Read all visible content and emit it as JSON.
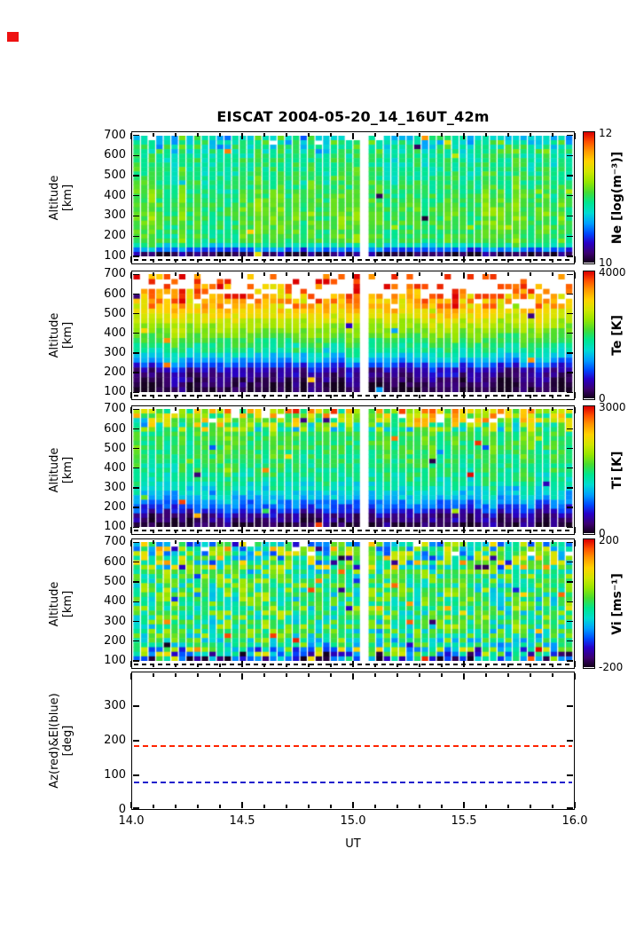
{
  "title": "EISCAT 2004-05-20_14_16UT_42m",
  "marker_color": "#ee1111",
  "x_axis": {
    "label": "UT",
    "ticks": [
      "14.0",
      "14.5",
      "15.0",
      "15.5",
      "16.0"
    ],
    "tick_values": [
      14.0,
      14.5,
      15.0,
      15.5,
      16.0
    ],
    "range": [
      14.0,
      16.0
    ]
  },
  "altitude_axis": {
    "label_line1": "Altitude",
    "label_line2": "[km]",
    "ticks": [
      "700",
      "600",
      "500",
      "400",
      "300",
      "200",
      "100"
    ],
    "tick_values": [
      700,
      600,
      500,
      400,
      300,
      200,
      100
    ],
    "range_km": [
      60,
      720
    ],
    "dashed_line_km": 85
  },
  "panels": [
    {
      "id": "ne",
      "colorbar_label": "Ne [log(m⁻³)]",
      "cbar_top_tick": "12",
      "cbar_bottom_tick": "10"
    },
    {
      "id": "te",
      "colorbar_label": "Te [K]",
      "cbar_top_tick": "4000",
      "cbar_bottom_tick": "0"
    },
    {
      "id": "ti",
      "colorbar_label": "Ti [K]",
      "cbar_top_tick": "3000",
      "cbar_bottom_tick": "0"
    },
    {
      "id": "vi",
      "colorbar_label": "Vi [ms⁻¹]",
      "cbar_top_tick": "200",
      "cbar_bottom_tick": "-200"
    }
  ],
  "azel_panel": {
    "label_line1": "Az(red)&El(blue)",
    "label_line2": "[deg]",
    "ticks": [
      "300",
      "200",
      "100",
      "0"
    ],
    "tick_values": [
      300,
      200,
      100,
      0
    ],
    "range_deg": [
      0,
      400
    ],
    "az_value_deg": 187,
    "el_value_deg": 82,
    "az_color": "#ff2400",
    "el_color": "#2020cc"
  },
  "colormap": [
    [
      0.0,
      "#14001e"
    ],
    [
      0.07,
      "#3c0070"
    ],
    [
      0.15,
      "#2800c8"
    ],
    [
      0.22,
      "#0048ff"
    ],
    [
      0.3,
      "#00a0ff"
    ],
    [
      0.38,
      "#00dcd2"
    ],
    [
      0.46,
      "#00e690"
    ],
    [
      0.54,
      "#46dc32"
    ],
    [
      0.62,
      "#96e600"
    ],
    [
      0.7,
      "#d2e600"
    ],
    [
      0.78,
      "#ffd200"
    ],
    [
      0.86,
      "#ff9600"
    ],
    [
      0.93,
      "#ff5000"
    ],
    [
      1.0,
      "#dc0000"
    ]
  ],
  "chart_data": [
    {
      "type": "heatmap",
      "panel": "Ne",
      "xlabel": "UT",
      "ylabel": "Altitude [km]",
      "x_range": [
        14.0,
        16.0
      ],
      "altitude_range_km": [
        100,
        700
      ],
      "value_range": [
        10,
        12
      ],
      "units": "log(m⁻³)",
      "colorbar_ticks": [
        10,
        12
      ],
      "summary": "Electron density: fairly uniform 10.8–11.4 log(m⁻³) (cyan/green) from ~150 to 700 km across 14–16 UT; near 10 (dark purple) below ~130 km; narrow data gap just after 15.0 UT.",
      "render": {
        "ncols": 58,
        "nrows": 27,
        "stops": [
          [
            0,
            0.05
          ],
          [
            0.05,
            0.33
          ],
          [
            0.1,
            0.52
          ],
          [
            0.35,
            0.55
          ],
          [
            0.6,
            0.5
          ],
          [
            0.85,
            0.46
          ],
          [
            1,
            0.42
          ]
        ],
        "noise": 0.06,
        "col_noise": 0.06,
        "top_start": 0.85,
        "top_noise": 0.1,
        "spike": 0.012,
        "missing": [
          {
            "above": 0.95,
            "prob": 0.04
          }
        ],
        "gap_cols": [
          30
        ]
      }
    },
    {
      "type": "heatmap",
      "panel": "Te",
      "xlabel": "UT",
      "ylabel": "Altitude [km]",
      "x_range": [
        14.0,
        16.0
      ],
      "altitude_range_km": [
        100,
        700
      ],
      "value_range": [
        0,
        4000
      ],
      "units": "K",
      "colorbar_ticks": [
        0,
        4000
      ],
      "summary": "Electron temperature: below ~500 K (dark purple) under 200 km, ~1500–2500 K (green to yellow) at 300–500 km, 2800–3800 K (orange/red) above ~550 km, with frequent data gaps (white) above ~600 km.",
      "render": {
        "ncols": 58,
        "nrows": 24,
        "stops": [
          [
            0,
            0.03
          ],
          [
            0.1,
            0.07
          ],
          [
            0.17,
            0.12
          ],
          [
            0.25,
            0.3
          ],
          [
            0.35,
            0.45
          ],
          [
            0.5,
            0.58
          ],
          [
            0.6,
            0.68
          ],
          [
            0.7,
            0.78
          ],
          [
            0.8,
            0.85
          ],
          [
            1,
            0.92
          ]
        ],
        "noise": 0.05,
        "col_noise": 0.05,
        "top_start": 0.7,
        "top_noise": 0.12,
        "spike": 0.01,
        "missing": [
          {
            "above": 0.85,
            "prob": 0.5
          },
          {
            "above": 0.72,
            "prob": 0.16
          },
          {
            "above": 0.93,
            "prob": 0.35
          }
        ],
        "gap_cols": [
          30
        ]
      }
    },
    {
      "type": "heatmap",
      "panel": "Ti",
      "xlabel": "UT",
      "ylabel": "Altitude [km]",
      "x_range": [
        14.0,
        16.0
      ],
      "altitude_range_km": [
        100,
        700
      ],
      "value_range": [
        0,
        3000
      ],
      "units": "K",
      "colorbar_ticks": [
        0,
        3000
      ],
      "summary": "Ion temperature: below ~500 K (dark blue/purple) under 200 km, ~1000–1600 K (cyan/green) from 250–600 km, noisy 1800–3000 K (yellow/orange/red speckle) above ~650 km.",
      "render": {
        "ncols": 58,
        "nrows": 26,
        "stops": [
          [
            0,
            0.04
          ],
          [
            0.08,
            0.1
          ],
          [
            0.15,
            0.22
          ],
          [
            0.25,
            0.35
          ],
          [
            0.4,
            0.45
          ],
          [
            0.6,
            0.5
          ],
          [
            0.8,
            0.52
          ],
          [
            0.9,
            0.58
          ],
          [
            1,
            0.7
          ]
        ],
        "noise": 0.06,
        "col_noise": 0.05,
        "top_start": 0.82,
        "top_noise": 0.22,
        "spike": 0.015,
        "missing": [
          {
            "above": 0.9,
            "prob": 0.08
          }
        ],
        "gap_cols": [
          30
        ]
      }
    },
    {
      "type": "heatmap",
      "panel": "Vi",
      "xlabel": "UT",
      "ylabel": "Altitude [km]",
      "x_range": [
        14.0,
        16.0
      ],
      "altitude_range_km": [
        100,
        700
      ],
      "value_range": [
        -200,
        200
      ],
      "units": "m s⁻¹",
      "colorbar_ticks": [
        -200,
        200
      ],
      "summary": "Line-of-sight ion velocity: mostly −50…+50 m s⁻¹ (cyan/green) with strong speckle noise reaching ±200 m s⁻¹, noisiest below ~150 km and above ~550 km.",
      "render": {
        "ncols": 58,
        "nrows": 26,
        "stops": [
          [
            0,
            0.22
          ],
          [
            0.06,
            0.42
          ],
          [
            0.3,
            0.5
          ],
          [
            0.7,
            0.5
          ],
          [
            0.95,
            0.48
          ],
          [
            1,
            0.45
          ]
        ],
        "noise": 0.16,
        "col_noise": 0.04,
        "top_start": 0.78,
        "top_noise": 0.26,
        "bottom_start": 0.12,
        "bottom_noise": 0.3,
        "spike": 0.05,
        "missing": [
          {
            "above": 0.9,
            "prob": 0.05
          }
        ],
        "gap_cols": [
          30
        ]
      }
    },
    {
      "type": "line",
      "panel": "Az & El",
      "xlabel": "UT",
      "ylabel": "Az(red)&El(blue) [deg]",
      "x_range": [
        14.0,
        16.0
      ],
      "ylim": [
        0,
        400
      ],
      "series": [
        {
          "name": "Azimuth (red)",
          "color": "#ff2400",
          "style": "dashed",
          "value_deg": 187
        },
        {
          "name": "Elevation (blue)",
          "color": "#2020cc",
          "style": "dashed",
          "value_deg": 82
        }
      ]
    }
  ]
}
